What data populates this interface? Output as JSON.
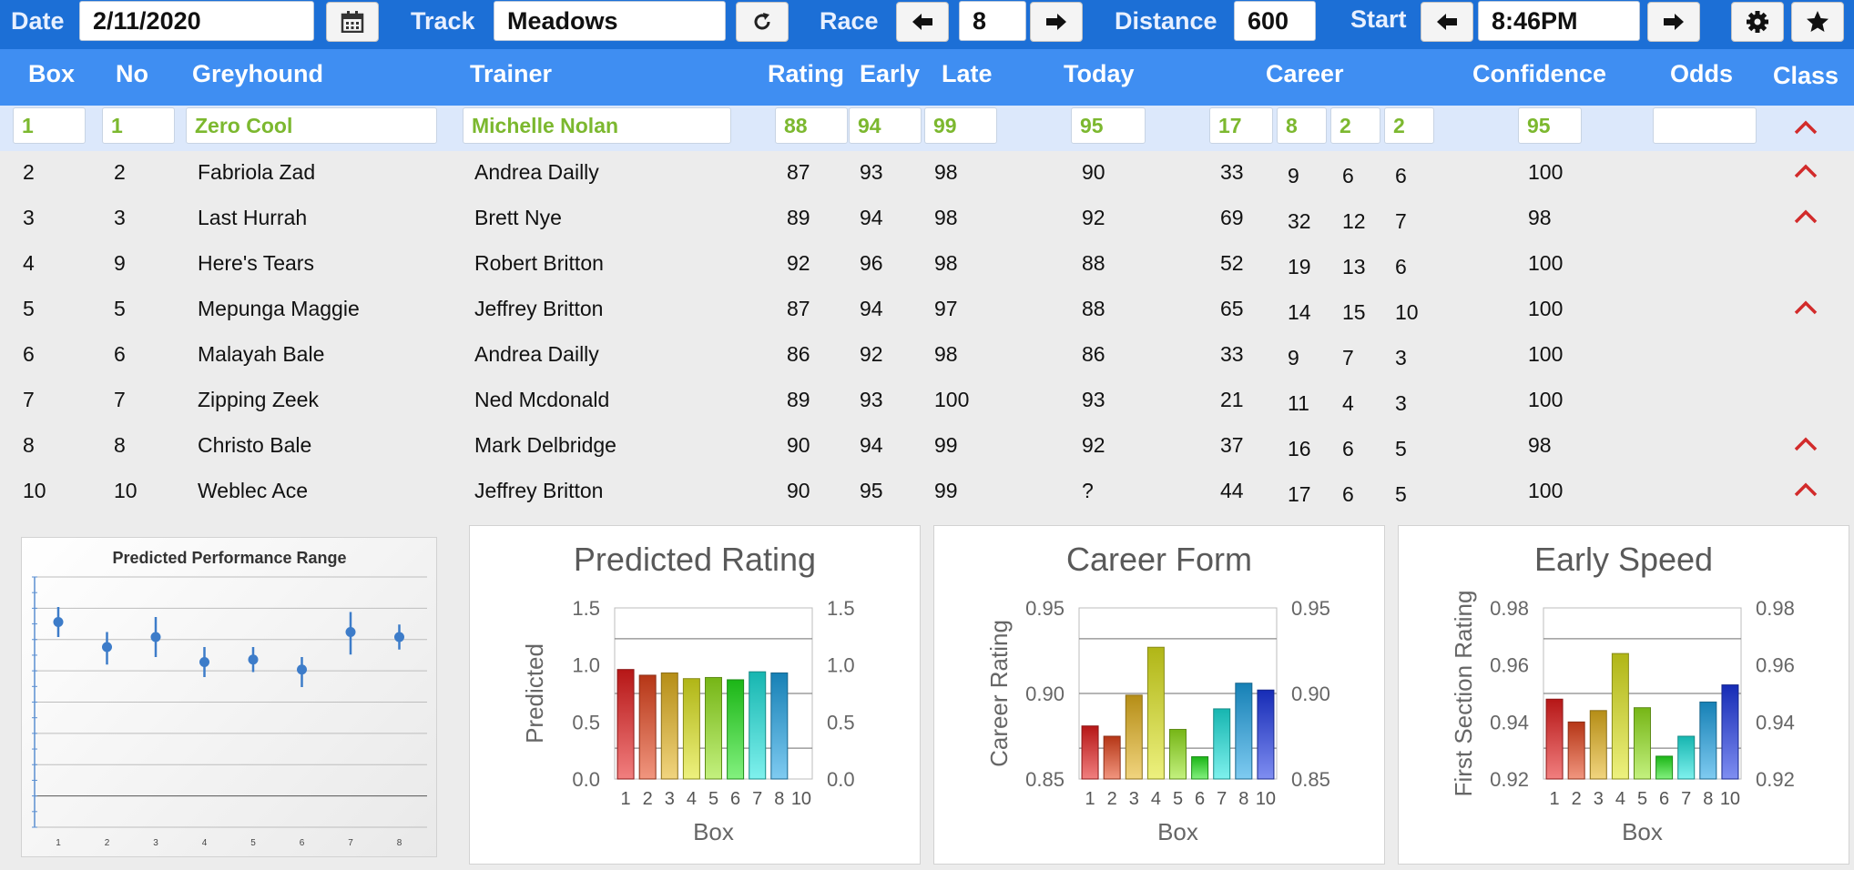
{
  "toolbar": {
    "date_label": "Date",
    "date_value": "2/11/2020",
    "calendar_icon": "calendar-icon",
    "track_label": "Track",
    "track_value": "Meadows",
    "refresh_icon": "refresh-icon",
    "race_label": "Race",
    "race_value": "8",
    "distance_label": "Distance",
    "distance_value": "600",
    "start_label": "Start",
    "start_value": "8:46PM",
    "settings_icon": "gear-icon",
    "favorite_icon": "star-icon",
    "colors": {
      "bar": "#1c6fd6",
      "header": "#3f8ef2",
      "selected_text": "#7cb82f",
      "caret": "#d22b2b"
    }
  },
  "columns": [
    "Box",
    "No",
    "Greyhound",
    "Trainer",
    "Rating",
    "Early",
    "Late",
    "Today",
    "Career",
    "Confidence",
    "Odds",
    "Class"
  ],
  "selected": {
    "box": "1",
    "no": "1",
    "greyhound": "Zero Cool",
    "trainer": "Michelle Nolan",
    "rating": "88",
    "early": "94",
    "late": "99",
    "today": "95",
    "career": [
      "17",
      "8",
      "2",
      "2"
    ],
    "confidence": "95",
    "odds": "",
    "class_up": true
  },
  "rows": [
    {
      "box": "2",
      "no": "2",
      "greyhound": "Fabriola Zad",
      "trainer": "Andrea Dailly",
      "rating": "87",
      "early": "93",
      "late": "98",
      "today": "90",
      "career": [
        "33",
        "9",
        "6",
        "6"
      ],
      "confidence": "100",
      "class_up": true
    },
    {
      "box": "3",
      "no": "3",
      "greyhound": "Last Hurrah",
      "trainer": "Brett Nye",
      "rating": "89",
      "early": "94",
      "late": "98",
      "today": "92",
      "career": [
        "69",
        "32",
        "12",
        "7"
      ],
      "confidence": "98",
      "class_up": true
    },
    {
      "box": "4",
      "no": "9",
      "greyhound": "Here's Tears",
      "trainer": "Robert Britton",
      "rating": "92",
      "early": "96",
      "late": "98",
      "today": "88",
      "career": [
        "52",
        "19",
        "13",
        "6"
      ],
      "confidence": "100",
      "class_up": false
    },
    {
      "box": "5",
      "no": "5",
      "greyhound": "Mepunga Maggie",
      "trainer": "Jeffrey Britton",
      "rating": "87",
      "early": "94",
      "late": "97",
      "today": "88",
      "career": [
        "65",
        "14",
        "15",
        "10"
      ],
      "confidence": "100",
      "class_up": true
    },
    {
      "box": "6",
      "no": "6",
      "greyhound": "Malayah Bale",
      "trainer": "Andrea Dailly",
      "rating": "86",
      "early": "92",
      "late": "98",
      "today": "86",
      "career": [
        "33",
        "9",
        "7",
        "3"
      ],
      "confidence": "100",
      "class_up": false
    },
    {
      "box": "7",
      "no": "7",
      "greyhound": "Zipping Zeek",
      "trainer": "Ned Mcdonald",
      "rating": "89",
      "early": "93",
      "late": "100",
      "today": "93",
      "career": [
        "21",
        "11",
        "4",
        "3"
      ],
      "confidence": "100",
      "class_up": false
    },
    {
      "box": "8",
      "no": "8",
      "greyhound": "Christo Bale",
      "trainer": "Mark Delbridge",
      "rating": "90",
      "early": "94",
      "late": "99",
      "today": "92",
      "career": [
        "37",
        "16",
        "6",
        "5"
      ],
      "confidence": "98",
      "class_up": true
    },
    {
      "box": "10",
      "no": "10",
      "greyhound": "Weblec Ace",
      "trainer": "Jeffrey Britton",
      "rating": "90",
      "early": "95",
      "late": "99",
      "today": "?",
      "career": [
        "44",
        "17",
        "6",
        "5"
      ],
      "confidence": "100",
      "class_up": true
    }
  ],
  "chart_data": [
    {
      "type": "scatter",
      "title": "Predicted Performance Range",
      "x": [
        "1",
        "2",
        "3",
        "4",
        "5",
        "6",
        "7",
        "8"
      ],
      "y": [
        0.82,
        0.72,
        0.76,
        0.66,
        0.67,
        0.63,
        0.78,
        0.76
      ],
      "y_low": [
        0.76,
        0.65,
        0.68,
        0.6,
        0.62,
        0.56,
        0.69,
        0.71
      ],
      "y_high": [
        0.88,
        0.78,
        0.84,
        0.72,
        0.72,
        0.68,
        0.86,
        0.81
      ],
      "ylim": [
        0,
        1
      ],
      "grid": true,
      "color": "#3d7cc9"
    },
    {
      "type": "bar",
      "title": "Predicted Rating",
      "xlabel": "Box",
      "ylabel": "Predicted",
      "categories": [
        "1",
        "2",
        "3",
        "4",
        "5",
        "6",
        "7",
        "8",
        "10"
      ],
      "values": [
        0.96,
        0.91,
        0.93,
        0.88,
        0.89,
        0.87,
        0.94,
        0.93,
        null
      ],
      "ylim": [
        0.0,
        1.5
      ],
      "yticks": [
        "0.0",
        "0.5",
        "1.0",
        "1.5"
      ],
      "grid": true
    },
    {
      "type": "bar",
      "title": "Career Form",
      "xlabel": "Box",
      "ylabel": "Career Rating",
      "categories": [
        "1",
        "2",
        "3",
        "4",
        "5",
        "6",
        "7",
        "8",
        "10"
      ],
      "values": [
        0.881,
        0.875,
        0.899,
        0.927,
        0.879,
        0.863,
        0.891,
        0.906,
        0.902
      ],
      "ylim": [
        0.85,
        0.95
      ],
      "yticks": [
        "0.85",
        "0.90",
        "0.95"
      ],
      "grid": true
    },
    {
      "type": "bar",
      "title": "Early Speed",
      "xlabel": "Box",
      "ylabel": "First Section Rating",
      "categories": [
        "1",
        "2",
        "3",
        "4",
        "5",
        "6",
        "7",
        "8",
        "10"
      ],
      "values": [
        0.948,
        0.94,
        0.944,
        0.964,
        0.945,
        0.928,
        0.935,
        0.947,
        0.953
      ],
      "ylim": [
        0.92,
        0.98
      ],
      "yticks": [
        "0.92",
        "0.94",
        "0.96",
        "0.98"
      ],
      "grid": true
    }
  ]
}
